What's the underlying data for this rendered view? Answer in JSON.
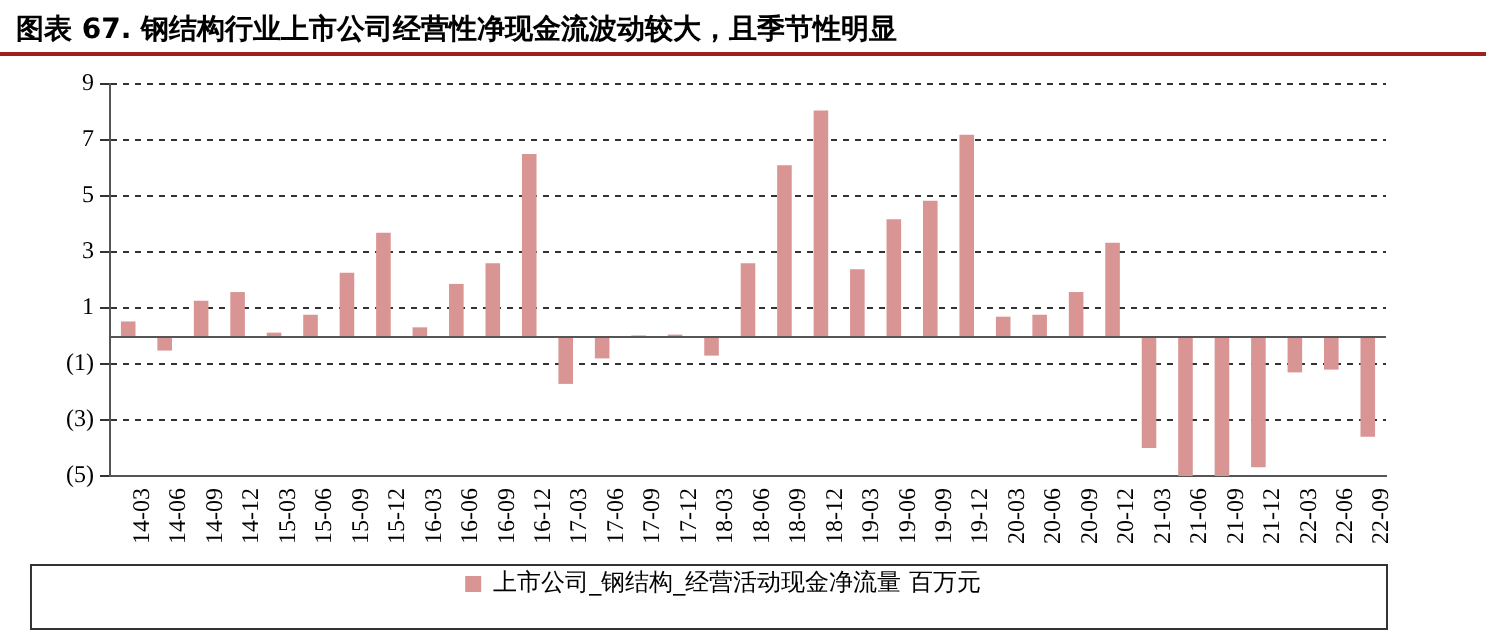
{
  "chart_data": {
    "type": "bar",
    "title": "图表 67. 钢结构行业上市公司经营性净现金流波动较大，且季节性明显",
    "categories": [
      "14-03",
      "14-06",
      "14-09",
      "14-12",
      "15-03",
      "15-06",
      "15-09",
      "15-12",
      "16-03",
      "16-06",
      "16-09",
      "16-12",
      "17-03",
      "17-06",
      "17-09",
      "17-12",
      "18-03",
      "18-06",
      "18-09",
      "18-12",
      "19-03",
      "19-06",
      "19-09",
      "19-12",
      "20-03",
      "20-06",
      "20-09",
      "20-12",
      "21-03",
      "21-06",
      "21-09",
      "21-12",
      "22-03",
      "22-06",
      "22-09"
    ],
    "series": [
      {
        "name": "上市公司_钢结构_经营活动现金净流量 百万元",
        "color": "#d99594",
        "values": [
          0.52,
          -0.52,
          1.26,
          1.57,
          0.12,
          0.76,
          2.26,
          3.69,
          0.31,
          1.86,
          2.6,
          6.5,
          -1.71,
          -0.8,
          0.02,
          0.05,
          -0.7,
          2.6,
          6.1,
          8.05,
          2.38,
          4.17,
          4.83,
          7.19,
          0.69,
          0.76,
          1.57,
          3.33,
          -4.0,
          -5.0,
          -5.0,
          -4.69,
          -1.3,
          -1.2,
          -3.6
        ]
      }
    ],
    "ylim": [
      -5,
      9
    ],
    "yticks": [
      {
        "value": -5,
        "label": "(5)"
      },
      {
        "value": -3,
        "label": "(3)"
      },
      {
        "value": -1,
        "label": "(1)"
      },
      1,
      3,
      5,
      7,
      9
    ],
    "grid": "y",
    "legend": "bottom"
  }
}
